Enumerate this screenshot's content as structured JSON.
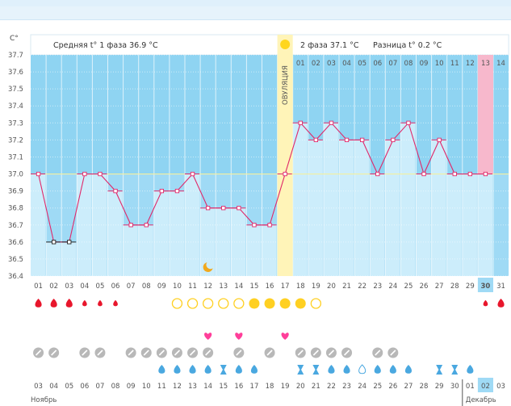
{
  "chart_data": {
    "type": "area",
    "y_unit": "C°",
    "ylim": [
      36.4,
      37.7
    ],
    "yticks": [
      "37.7",
      "37.6",
      "37.5",
      "37.4",
      "37.3",
      "37.2",
      "37.1",
      "37.0",
      "36.9",
      "36.8",
      "36.7",
      "36.6",
      "36.5",
      "36.4"
    ],
    "phase1_text": "Средняя t° 1 фаза 36.9 °C",
    "phase2_text": "2 фаза 37.1 °C",
    "diff_text": "Разница t° 0.2 °C",
    "ovulation_label": "ОВУЛЯЦИЯ",
    "cover_line": 37.0,
    "phase2_start_index": 17,
    "ovulation_index": 16,
    "x": [
      "01",
      "02",
      "03",
      "04",
      "05",
      "06",
      "07",
      "08",
      "09",
      "10",
      "11",
      "12",
      "13",
      "14",
      "15",
      "16",
      "17",
      "18",
      "19",
      "20",
      "21",
      "22",
      "23",
      "24",
      "25",
      "26",
      "27",
      "28",
      "29",
      "30",
      "31"
    ],
    "phase2_days": [
      "01",
      "02",
      "03",
      "04",
      "05",
      "06",
      "07",
      "08",
      "09",
      "10",
      "11",
      "12",
      "13",
      "14"
    ],
    "highlight_phase2_day": "13",
    "highlight_x": "30",
    "values": [
      37.0,
      36.6,
      36.6,
      37.0,
      37.0,
      36.9,
      36.7,
      36.7,
      36.9,
      36.9,
      37.0,
      36.8,
      36.8,
      36.8,
      36.7,
      36.7,
      37.0,
      37.3,
      37.2,
      37.3,
      37.2,
      37.2,
      37.0,
      37.2,
      37.3,
      37.0,
      37.2,
      37.0,
      37.0,
      37.0,
      null
    ],
    "moon_day_index": 11,
    "symbols": {
      "blood": [
        "big",
        "big",
        "big",
        "small",
        "small",
        "small",
        "",
        "",
        "",
        "",
        "",
        "",
        "",
        "",
        "",
        "",
        "",
        "",
        "",
        "",
        "",
        "",
        "",
        "",
        "",
        "",
        "",
        "",
        "",
        "small",
        "big"
      ],
      "sun": [
        "",
        "",
        "",
        "",
        "",
        "",
        "",
        "",
        "",
        "outline",
        "outline",
        "outline",
        "outline",
        "outline",
        "filled",
        "filled",
        "filled",
        "filled",
        "outline",
        "",
        "",
        "",
        "",
        "",
        "",
        "",
        "",
        "",
        "",
        "",
        ""
      ],
      "heart": [
        "",
        "",
        "",
        "",
        "",
        "",
        "",
        "",
        "",
        "",
        "",
        "1",
        "",
        "1",
        "",
        "",
        "1",
        "",
        "",
        "",
        "",
        "",
        "",
        "",
        "",
        "",
        "",
        "",
        "",
        "",
        ""
      ],
      "pill": [
        "1",
        "1",
        "",
        "1",
        "1",
        "",
        "1",
        "1",
        "1",
        "1",
        "1",
        "1",
        "",
        "1",
        "",
        "1",
        "",
        "1",
        "1",
        "1",
        "1",
        "",
        "1",
        "1",
        "",
        "",
        "",
        "",
        "",
        "",
        ""
      ],
      "drop": [
        "",
        "",
        "",
        "",
        "",
        "",
        "",
        "",
        "drop",
        "drop",
        "drop",
        "drop",
        "hourglass",
        "drop",
        "drop",
        "",
        "",
        "hourglass",
        "hourglass",
        "drop",
        "drop",
        "outline",
        "drop",
        "drop",
        "drop",
        "",
        "hourglass",
        "hourglass",
        "drop",
        "",
        ""
      ]
    },
    "dates": [
      "03",
      "04",
      "05",
      "06",
      "07",
      "08",
      "09",
      "10",
      "11",
      "12",
      "13",
      "14",
      "15",
      "16",
      "17",
      "18",
      "19",
      "20",
      "21",
      "22",
      "23",
      "24",
      "25",
      "26",
      "27",
      "28",
      "29",
      "30",
      "01",
      "02",
      "03"
    ],
    "red_date_indices": [
      4,
      5,
      11,
      12,
      18,
      19,
      25,
      26
    ],
    "highlight_date_index": 29,
    "month_left": "Ноябрь",
    "month_right": "Декабрь",
    "month_right_start_index": 28
  },
  "colors": {
    "above_bg": "#8fd4f2",
    "below_bg": "#9fdaf5",
    "bar_fill": "#ccedfb",
    "line": "#e0286a",
    "ovulation": "#fff4b8",
    "ovulation_dot": "#ffd61f",
    "highlight": "#f7b8cc",
    "blood": "#e8162c",
    "sun": "#ffd022",
    "heart": "#ff3f9a",
    "pill": "#b8b8b8",
    "drop": "#4aa8e0"
  }
}
